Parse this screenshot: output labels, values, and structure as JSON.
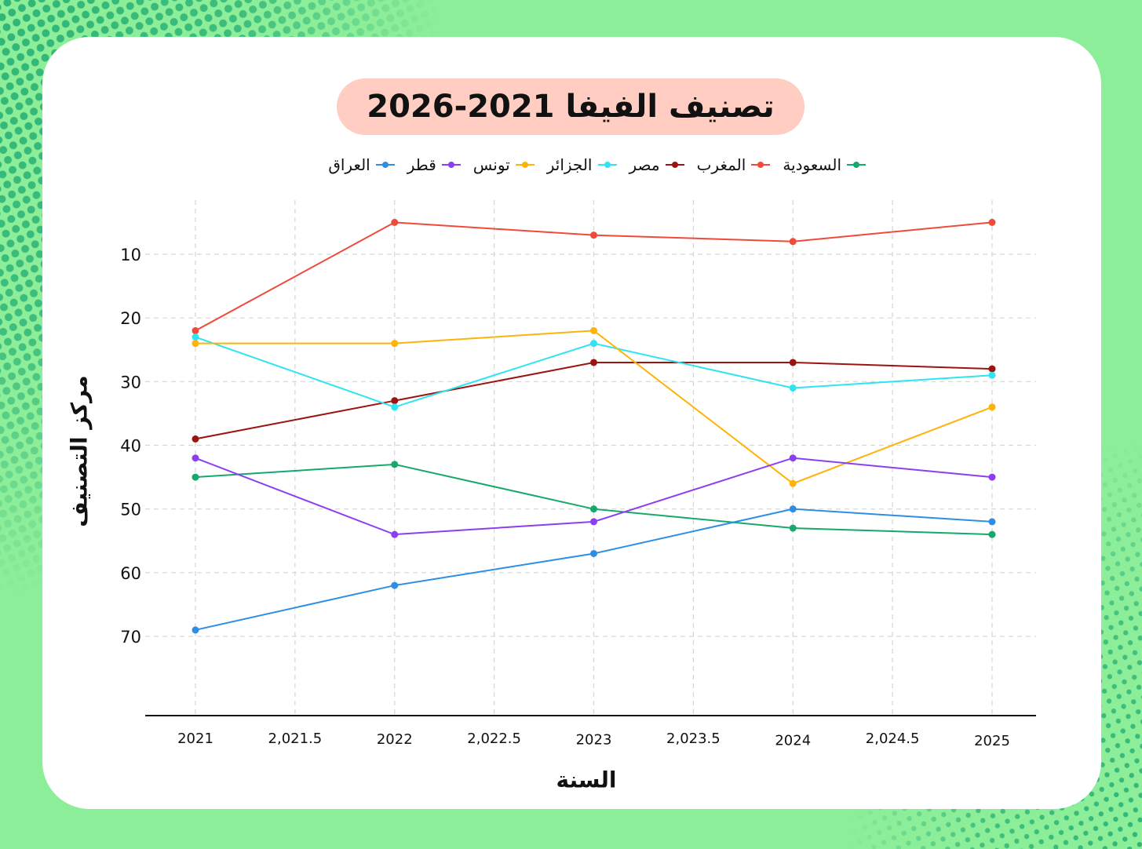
{
  "title": "تصنيف الفيفا 2021-2026",
  "colors": {
    "background": "#8dee9a",
    "dots": "#2fb577",
    "card": "#ffffff",
    "title_pill": "#ffcdc2",
    "grid": "#d6d6d6",
    "axis": "#111111"
  },
  "chart_data": {
    "type": "line",
    "title": "تصنيف الفيفا 2021-2026",
    "xlabel": "السنة",
    "ylabel": "مركز التصنيف",
    "x": [
      2021,
      2022,
      2023,
      2024,
      2025
    ],
    "x_ticks": [
      2021,
      2021.5,
      2022,
      2022.5,
      2023,
      2023.5,
      2024,
      2024.5,
      2025
    ],
    "x_tick_labels": [
      "2021",
      "2,021.5",
      "2022",
      "2,022.5",
      "2023",
      "2,023.5",
      "2024",
      "2,024.5",
      "2025"
    ],
    "y_ticks": [
      10,
      20,
      30,
      40,
      50,
      60,
      70
    ],
    "y_tick_labels": [
      "10",
      "20",
      "30",
      "40",
      "50",
      "60",
      "70"
    ],
    "y_reversed": true,
    "ylim": [
      2.2,
      82.6
    ],
    "xlim": [
      2020.75,
      2025.22
    ],
    "grid": true,
    "legend_position": "top",
    "series": [
      {
        "name": "السعودية",
        "color": "#17a86b",
        "values": [
          45,
          43,
          50,
          53,
          54
        ]
      },
      {
        "name": "المغرب",
        "color": "#ef4b3b",
        "values": [
          22,
          5,
          7,
          8,
          5
        ]
      },
      {
        "name": "مصر",
        "color": "#9b1510",
        "values": [
          39,
          33,
          27,
          27,
          28
        ]
      },
      {
        "name": "الجزائر",
        "color": "#2ee4f2",
        "values": [
          23,
          34,
          24,
          31,
          29
        ]
      },
      {
        "name": "تونس",
        "color": "#ffb30a",
        "values": [
          24,
          24,
          22,
          46,
          34
        ]
      },
      {
        "name": "قطر",
        "color": "#8b3ff0",
        "values": [
          42,
          54,
          52,
          42,
          45
        ]
      },
      {
        "name": "العراق",
        "color": "#2e8ee4",
        "values": [
          69,
          62,
          57,
          50,
          52
        ]
      }
    ]
  }
}
